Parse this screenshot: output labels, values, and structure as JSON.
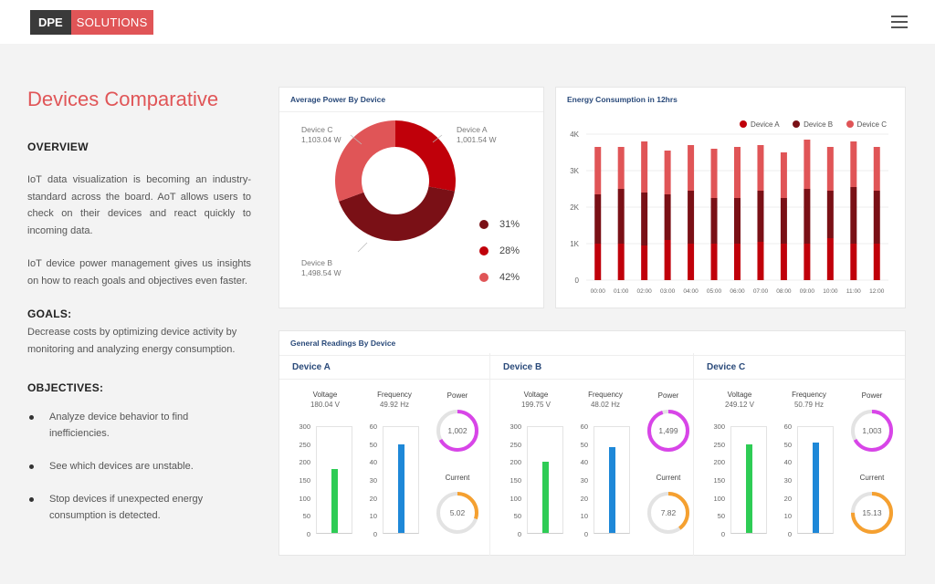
{
  "header": {
    "logo_left": "DPE",
    "logo_right": "SOLUTIONS"
  },
  "left": {
    "title": "Devices Comparative",
    "overview_heading": "OVERVIEW",
    "overview_p1": "IoT data visualization is becoming an industry-standard across the board. AoT allows users to check on their devices and react quickly to incoming data.",
    "overview_p2": "IoT device power management gives us insights on how to reach goals and objectives even faster.",
    "goals_heading": "GOALS:",
    "goals_text": "Decrease costs by optimizing device activity by monitoring and analyzing energy consumption.",
    "objectives_heading": "OBJECTIVES:",
    "objectives": [
      "Analyze device behavior to find inefficiencies.",
      "See which devices are unstable.",
      "Stop devices if unexpected energy consumption is detected."
    ]
  },
  "colors": {
    "device_a": "#c0000a",
    "device_b": "#7a1016",
    "device_c": "#e05557",
    "voltage": "#2ecc55",
    "frequency": "#1e88d8",
    "power": "#d845e8",
    "current": "#f5a030",
    "gauge_track": "#e3e3e3"
  },
  "avg_power": {
    "title": "Average Power By Device",
    "labels": [
      {
        "name": "Device C",
        "value": "1,103.04 W"
      },
      {
        "name": "Device A",
        "value": "1,001.54 W"
      },
      {
        "name": "Device B",
        "value": "1,498.54 W"
      }
    ],
    "percent_legend": [
      "31%",
      "28%",
      "42%"
    ]
  },
  "energy": {
    "title": "Energy Consumption in 12hrs",
    "legend": [
      "Device A",
      "Device B",
      "Device C"
    ],
    "y_ticks": [
      "4K",
      "3K",
      "2K",
      "1K",
      "0"
    ]
  },
  "readings": {
    "title": "General Readings By Device",
    "voltage_label": "Voltage",
    "frequency_label": "Frequency",
    "power_label": "Power",
    "current_label": "Current",
    "voltage_ticks": [
      "300",
      "250",
      "200",
      "150",
      "100",
      "50",
      "0"
    ],
    "frequency_ticks": [
      "60",
      "50",
      "40",
      "30",
      "20",
      "10",
      "0"
    ],
    "devices": [
      {
        "name": "Device A",
        "voltage": "180.04 V",
        "frequency": "49.92 Hz",
        "power": "1,002",
        "current": "5.02"
      },
      {
        "name": "Device B",
        "voltage": "199.75 V",
        "frequency": "48.02 Hz",
        "power": "1,499",
        "current": "7.82"
      },
      {
        "name": "Device C",
        "voltage": "249.12 V",
        "frequency": "50.79 Hz",
        "power": "1,003",
        "current": "15.13"
      }
    ]
  },
  "chart_data": [
    {
      "type": "pie",
      "title": "Average Power By Device",
      "categories": [
        "Device A",
        "Device B",
        "Device C"
      ],
      "values": [
        1001.54,
        1498.54,
        1103.04
      ],
      "percents": [
        28,
        42,
        31
      ]
    },
    {
      "type": "bar",
      "title": "Energy Consumption in 12hrs",
      "stacked": true,
      "categories": [
        "00:00",
        "01:00",
        "02:00",
        "03:00",
        "04:00",
        "05:00",
        "06:00",
        "07:00",
        "08:00",
        "09:00",
        "10:00",
        "11:00",
        "12:00"
      ],
      "ylim": [
        0,
        4000
      ],
      "y_ticks": [
        0,
        1000,
        2000,
        3000,
        4000
      ],
      "grid": true,
      "legend": "top-right",
      "series": [
        {
          "name": "Device A",
          "values": [
            1000,
            1000,
            950,
            1100,
            1000,
            1000,
            1000,
            1050,
            1000,
            1000,
            1150,
            1000,
            1000
          ]
        },
        {
          "name": "Device B",
          "values": [
            1350,
            1500,
            1450,
            1250,
            1450,
            1250,
            1250,
            1400,
            1250,
            1500,
            1300,
            1550,
            1450
          ]
        },
        {
          "name": "Device C",
          "values": [
            1300,
            1150,
            1400,
            1200,
            1250,
            1350,
            1400,
            1250,
            1250,
            1350,
            1200,
            1250,
            1200
          ]
        }
      ]
    },
    {
      "type": "bar",
      "title": "Voltage",
      "categories": [
        "Device A",
        "Device B",
        "Device C"
      ],
      "values": [
        180.04,
        199.75,
        249.12
      ],
      "ylim": [
        0,
        300
      ]
    },
    {
      "type": "bar",
      "title": "Frequency",
      "categories": [
        "Device A",
        "Device B",
        "Device C"
      ],
      "values": [
        49.92,
        48.02,
        50.79
      ],
      "ylim": [
        0,
        60
      ]
    },
    {
      "type": "pie",
      "title": "Power",
      "categories": [
        "Device A",
        "Device B",
        "Device C"
      ],
      "values": [
        1002,
        1499,
        1003
      ],
      "fill_fraction": [
        0.67,
        0.95,
        0.67
      ]
    },
    {
      "type": "pie",
      "title": "Current",
      "categories": [
        "Device A",
        "Device B",
        "Device C"
      ],
      "values": [
        5.02,
        7.82,
        15.13
      ],
      "fill_fraction": [
        0.3,
        0.4,
        0.75
      ]
    }
  ]
}
